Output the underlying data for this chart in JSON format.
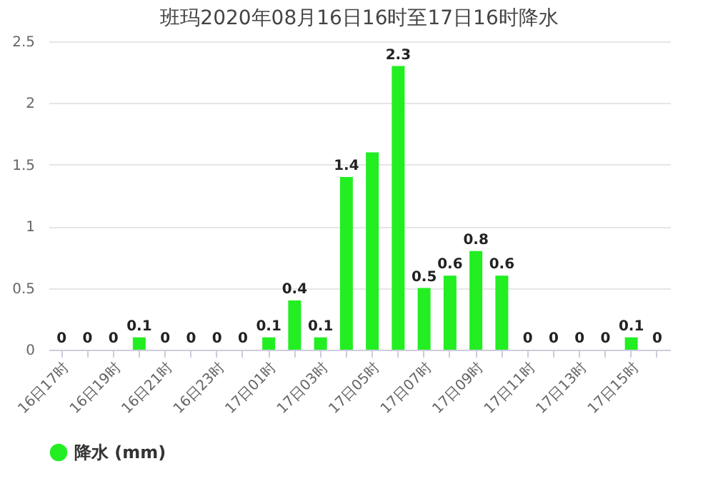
{
  "chart_data": {
    "type": "bar",
    "title": "班玛2020年08月16日16时至17日16时降水",
    "categories": [
      "16日17时",
      null,
      "16日19时",
      null,
      "16日21时",
      null,
      "16日23时",
      null,
      "17日01时",
      null,
      "17日03时",
      null,
      "17日05时",
      null,
      "17日07时",
      null,
      "17日09时",
      null,
      "17日11时",
      null,
      "17日13时",
      null,
      "17日15时",
      null
    ],
    "series": [
      {
        "name": "降水 (mm)",
        "color": "#22ee22",
        "values": [
          0,
          0,
          0,
          0.1,
          0,
          0,
          0,
          0,
          0.1,
          0.4,
          0.1,
          1.4,
          1.6,
          2.3,
          0.5,
          0.6,
          0.8,
          0.6,
          0,
          0,
          0,
          0,
          0.1,
          0
        ],
        "value_labels": [
          "0",
          "0",
          "0",
          "0.1",
          "0",
          "0",
          "0",
          "0",
          "0.1",
          "0.4",
          "0.1",
          "1.4",
          null,
          "2.3",
          "0.5",
          "0.6",
          "0.8",
          "0.6",
          "0",
          "0",
          "0",
          "0",
          "0.1",
          "0"
        ]
      }
    ],
    "ylim": [
      0,
      2.5
    ],
    "yticks": [
      0,
      0.5,
      1,
      1.5,
      2,
      2.5
    ],
    "grid": "y",
    "legend": "bottom"
  }
}
